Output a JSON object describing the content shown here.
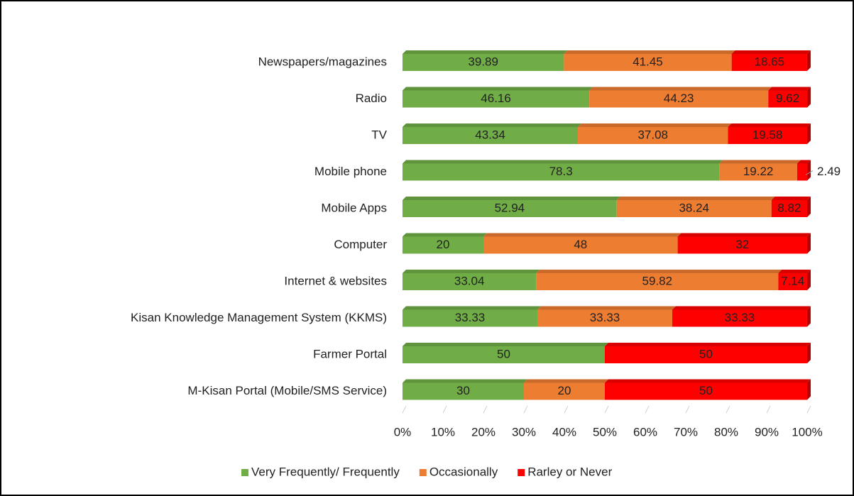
{
  "chart_data": {
    "type": "stacked-bar-horizontal",
    "categories": [
      "Newspapers/magazines",
      "Radio",
      "TV",
      "Mobile phone",
      "Mobile Apps",
      "Computer",
      "Internet & websites",
      "Kisan Knowledge Management System (KKMS)",
      "Farmer Portal",
      "M-Kisan Portal (Mobile/SMS Service)"
    ],
    "series": [
      {
        "name": "Very Frequently/ Frequently",
        "color": "#70ad47",
        "values": [
          39.89,
          46.16,
          43.34,
          78.3,
          52.94,
          20,
          33.04,
          33.33,
          50,
          30
        ]
      },
      {
        "name": "Occasionally",
        "color": "#ed7d31",
        "values": [
          41.45,
          44.23,
          37.08,
          19.22,
          38.24,
          48,
          59.82,
          33.33,
          0,
          20
        ]
      },
      {
        "name": "Rarley or Never",
        "color": "#ff0000",
        "values": [
          18.65,
          9.62,
          19.58,
          2.49,
          8.82,
          32,
          7.14,
          33.33,
          50,
          50
        ]
      }
    ],
    "xlim": [
      0,
      100
    ],
    "xticks": [
      {
        "value": 0,
        "label": "0%"
      },
      {
        "value": 10,
        "label": "10%"
      },
      {
        "value": 20,
        "label": "20%"
      },
      {
        "value": 30,
        "label": "30%"
      },
      {
        "value": 40,
        "label": "40%"
      },
      {
        "value": 50,
        "label": "50%"
      },
      {
        "value": 60,
        "label": "60%"
      },
      {
        "value": 70,
        "label": "70%"
      },
      {
        "value": 80,
        "label": "80%"
      },
      {
        "value": 90,
        "label": "90%"
      },
      {
        "value": 100,
        "label": "100%"
      }
    ],
    "legend": "bottom"
  }
}
